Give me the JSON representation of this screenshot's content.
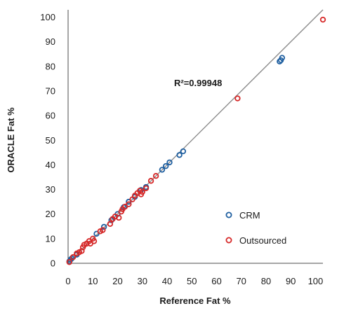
{
  "chart_data": {
    "type": "scatter",
    "title": "",
    "xlabel": "Reference Fat %",
    "ylabel": "ORACLE Fat %",
    "xlim": [
      0,
      103
    ],
    "ylim": [
      0,
      103
    ],
    "xticks": [
      0,
      10,
      20,
      30,
      40,
      50,
      60,
      70,
      80,
      90,
      100
    ],
    "yticks": [
      0,
      10,
      20,
      30,
      40,
      50,
      60,
      70,
      80,
      90,
      100
    ],
    "grid": false,
    "legend_position": "lower-right",
    "annotation": "R²=0.99948",
    "fit_line": {
      "x": [
        0,
        103
      ],
      "y": [
        0,
        103
      ],
      "color": "#8c8c8c"
    },
    "series": [
      {
        "name": "CRM",
        "color": "#1f5fa0",
        "marker": "open-circle",
        "points": [
          [
            0.5,
            0.8
          ],
          [
            1.0,
            1.5
          ],
          [
            1.5,
            2.0
          ],
          [
            3.5,
            3.5
          ],
          [
            11.5,
            12.0
          ],
          [
            14.5,
            14.8
          ],
          [
            17.5,
            17.5
          ],
          [
            20.0,
            20.0
          ],
          [
            22.5,
            22.8
          ],
          [
            24.5,
            25.0
          ],
          [
            27.0,
            27.0
          ],
          [
            29.5,
            29.8
          ],
          [
            31.5,
            31.0
          ],
          [
            38.0,
            38.0
          ],
          [
            39.5,
            39.5
          ],
          [
            41.0,
            41.0
          ],
          [
            45.0,
            44.0
          ],
          [
            46.5,
            45.5
          ],
          [
            85.5,
            82.0
          ],
          [
            86.0,
            82.5
          ],
          [
            86.5,
            83.5
          ]
        ]
      },
      {
        "name": "Outsourced",
        "color": "#d62828",
        "marker": "open-circle",
        "points": [
          [
            0.5,
            0.5
          ],
          [
            2.0,
            2.5
          ],
          [
            3.5,
            4.0
          ],
          [
            4.5,
            4.5
          ],
          [
            5.5,
            5.0
          ],
          [
            6.0,
            6.5
          ],
          [
            6.5,
            7.5
          ],
          [
            7.5,
            8.0
          ],
          [
            8.5,
            9.0
          ],
          [
            9.0,
            8.0
          ],
          [
            10.0,
            10.0
          ],
          [
            10.5,
            9.0
          ],
          [
            13.0,
            13.0
          ],
          [
            14.0,
            13.5
          ],
          [
            17.0,
            16.0
          ],
          [
            18.0,
            18.0
          ],
          [
            19.0,
            19.0
          ],
          [
            20.5,
            18.5
          ],
          [
            21.5,
            21.0
          ],
          [
            22.0,
            22.0
          ],
          [
            23.0,
            23.0
          ],
          [
            24.5,
            24.0
          ],
          [
            26.0,
            26.0
          ],
          [
            27.0,
            27.5
          ],
          [
            28.0,
            28.5
          ],
          [
            29.0,
            29.5
          ],
          [
            29.5,
            28.0
          ],
          [
            30.0,
            29.0
          ],
          [
            31.5,
            30.5
          ],
          [
            33.5,
            33.5
          ],
          [
            35.5,
            35.5
          ],
          [
            68.5,
            67.0
          ],
          [
            103.0,
            99.0
          ]
        ]
      }
    ]
  }
}
